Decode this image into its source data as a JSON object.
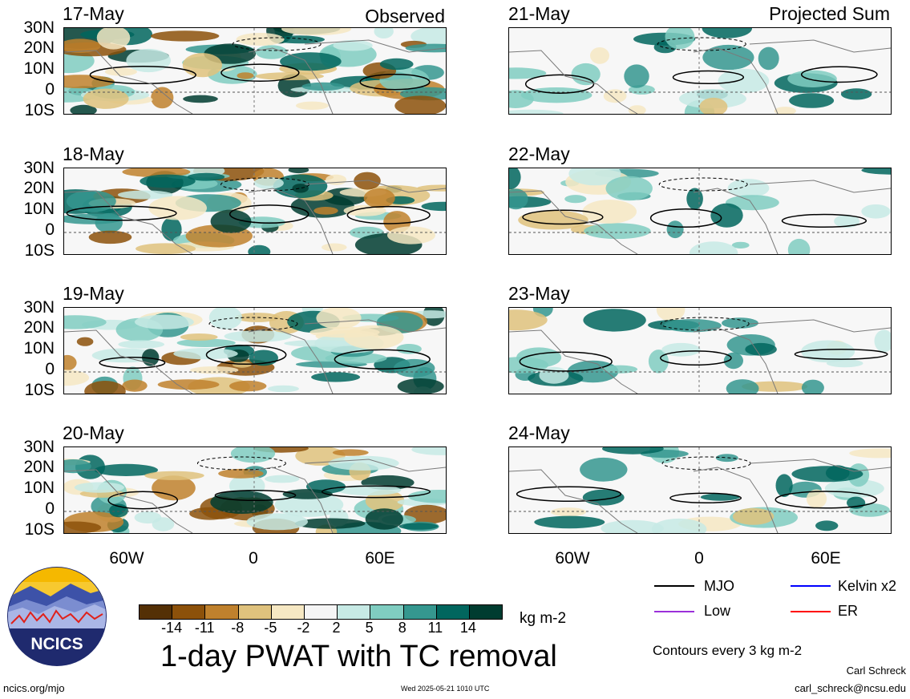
{
  "panels_left_header": "Observed",
  "panels_right_header": "Projected Sum",
  "left_dates": [
    "17-May",
    "18-May",
    "19-May",
    "20-May"
  ],
  "right_dates": [
    "21-May",
    "22-May",
    "23-May",
    "24-May"
  ],
  "lat_labels": [
    "30N",
    "20N",
    "10N",
    "0",
    "10S"
  ],
  "lon_labels": [
    "60W",
    "0",
    "60E"
  ],
  "legend": {
    "mjo": "MJO",
    "kelvin": "Kelvin x2",
    "low": "Low",
    "er": "ER",
    "colors": {
      "mjo": "#000000",
      "kelvin": "#0000ff",
      "low": "#9b30d9",
      "er": "#ff0000"
    }
  },
  "colorbar": {
    "ticks": [
      "-14",
      "-11",
      "-8",
      "-5",
      "-2",
      "2",
      "5",
      "8",
      "11",
      "14"
    ],
    "colors": [
      "#543005",
      "#8c510a",
      "#bf812d",
      "#dfc27d",
      "#f6e8c3",
      "#f5f5f5",
      "#c7eae5",
      "#80cdc1",
      "#35978f",
      "#01665e",
      "#003c30"
    ],
    "unit": "kg m-2"
  },
  "title": "1-day PWAT with TC removal",
  "contours_note": "Contours every 3 kg m-2",
  "author": "Carl Schreck",
  "email": "carl_schreck@ncsu.edu",
  "site": "ncics.org/mjo",
  "timestamp": "Wed 2025-05-21 1010 UTC",
  "logo_text": "NCICS"
}
